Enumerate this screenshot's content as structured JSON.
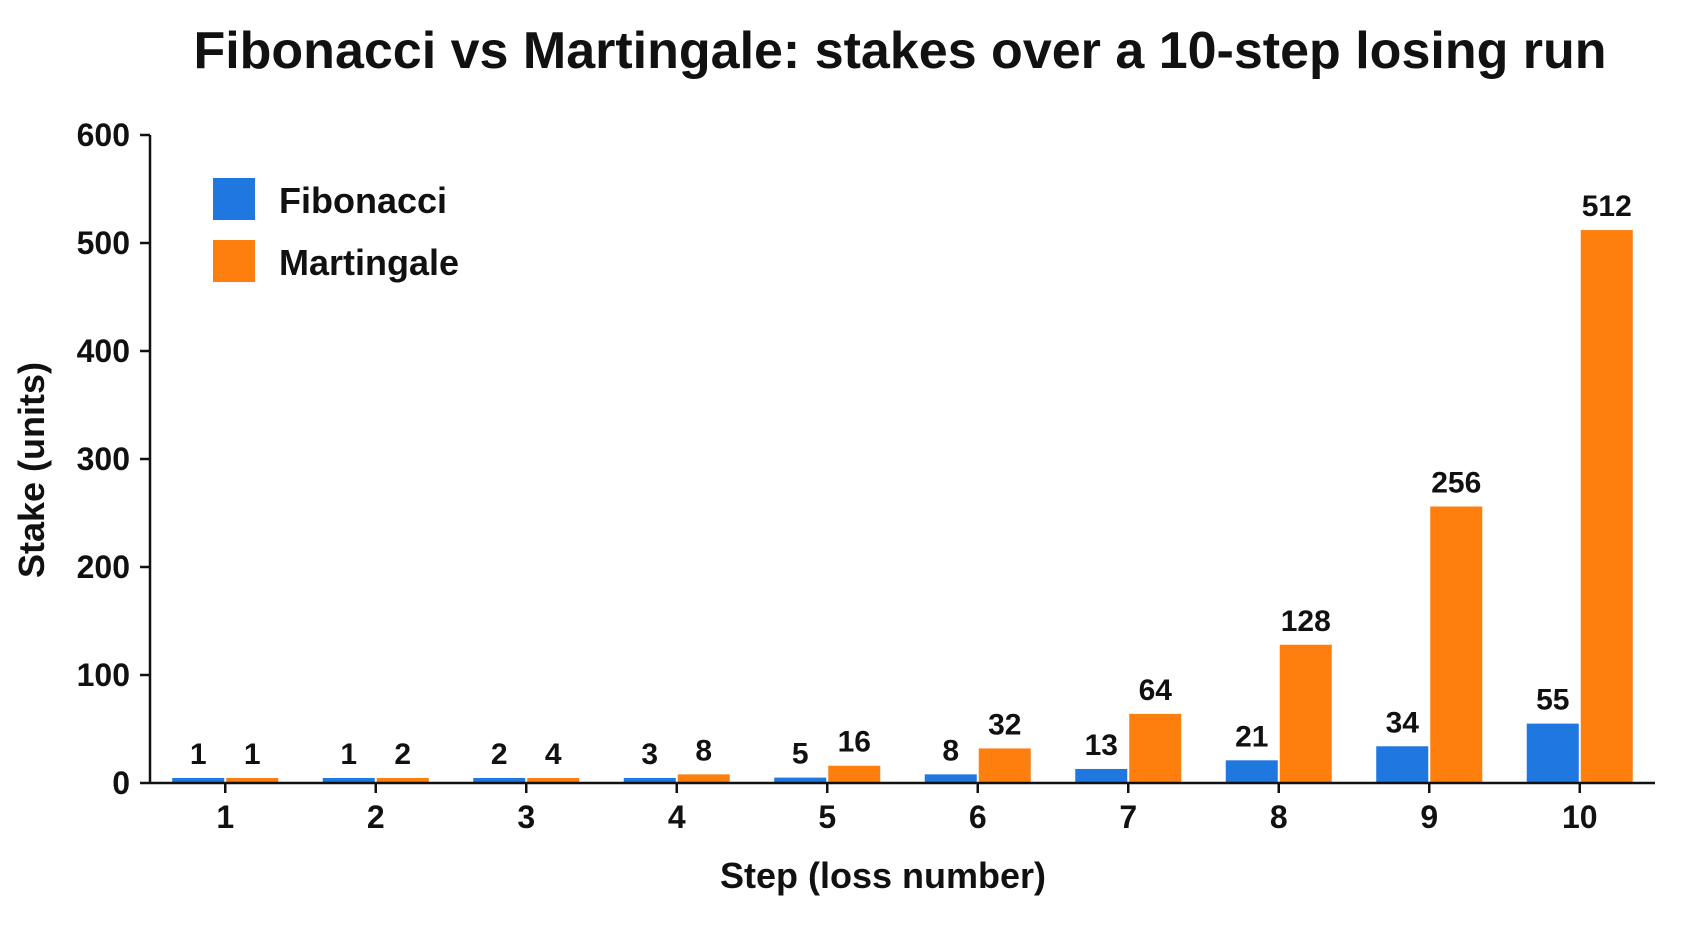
{
  "chart_data": {
    "type": "bar",
    "title": "Fibonacci vs Martingale: stakes over a 10-step losing run",
    "xlabel": "Step (loss number)",
    "ylabel": "Stake (units)",
    "categories": [
      "1",
      "2",
      "3",
      "4",
      "5",
      "6",
      "7",
      "8",
      "9",
      "10"
    ],
    "ylim": [
      0,
      600
    ],
    "yticks": [
      "0",
      "100",
      "200",
      "300",
      "400",
      "500",
      "600"
    ],
    "series": [
      {
        "name": "Fibonacci",
        "color": "#1f77e0",
        "values": [
          1,
          1,
          2,
          3,
          5,
          8,
          13,
          21,
          34,
          55
        ]
      },
      {
        "name": "Martingale",
        "color": "#ff7f0e",
        "values": [
          1,
          2,
          4,
          8,
          16,
          32,
          64,
          128,
          256,
          512
        ]
      }
    ],
    "legend": "top-left",
    "grid": false,
    "data_labels": true
  }
}
